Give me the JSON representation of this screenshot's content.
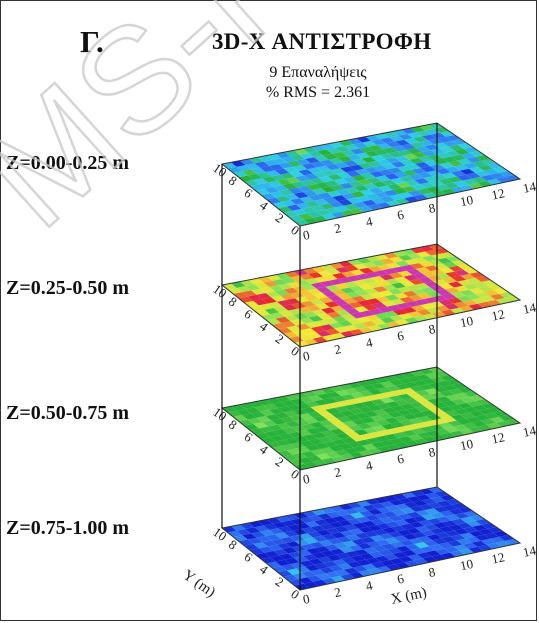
{
  "panel_letter": "Γ.",
  "title": "3D-X ΑΝΤΙΣΤΡΟΦΗ",
  "iterations_text": "9 Επαναλήψεις",
  "rms_text": "% RMS = 2.361",
  "watermark_text": "MS-F",
  "layers": [
    {
      "label": "Z=0.00-0.25 m",
      "palette": "green-blue"
    },
    {
      "label": "Z=0.25-0.50 m",
      "palette": "red-yellow"
    },
    {
      "label": "Z=0.50-0.75 m",
      "palette": "green-yellow"
    },
    {
      "label": "Z=0.75-1.00 m",
      "palette": "blue"
    }
  ],
  "axes": {
    "x_ticks": [
      "0",
      "2",
      "4",
      "6",
      "8",
      "10",
      "12",
      "14"
    ],
    "y_ticks": [
      "0",
      "2",
      "4",
      "6",
      "8",
      "10"
    ],
    "x_title": "X (m)",
    "y_title": "Y (m)"
  },
  "colors": {
    "deep_blue": "#1020d0",
    "blue": "#2f6cf2",
    "cyan": "#2fd0e8",
    "green": "#27b23a",
    "light_green": "#7ee05a",
    "yellow": "#f3e836",
    "red": "#e8252a",
    "magenta": "#c23ccf"
  }
}
